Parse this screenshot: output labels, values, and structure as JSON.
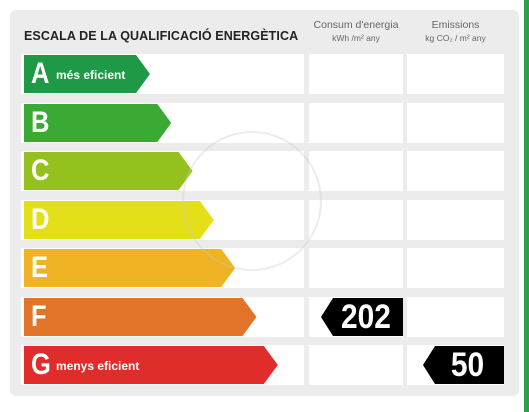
{
  "header": {
    "title": "ESCALA DE LA QUALIFICACIÓ ENERGÈTICA",
    "consumption_title": "Consum d'energia",
    "consumption_unit": "kWh /m² any",
    "emissions_title": "Emissions",
    "emissions_unit": "kg CO₂ / m² any"
  },
  "ratings": [
    {
      "letter": "A",
      "label": "més eficient",
      "color": "#1e9a46"
    },
    {
      "letter": "B",
      "label": "",
      "color": "#3aaa35"
    },
    {
      "letter": "C",
      "label": "",
      "color": "#95c11f"
    },
    {
      "letter": "D",
      "label": "",
      "color": "#e3e01a"
    },
    {
      "letter": "E",
      "label": "",
      "color": "#f0b323"
    },
    {
      "letter": "F",
      "label": "",
      "color": "#e2742a"
    },
    {
      "letter": "G",
      "label": "menys eficient",
      "color": "#e02d2b"
    }
  ],
  "consumption": {
    "rating": "F",
    "value": "202"
  },
  "emissions": {
    "rating": "G",
    "value": "50"
  }
}
